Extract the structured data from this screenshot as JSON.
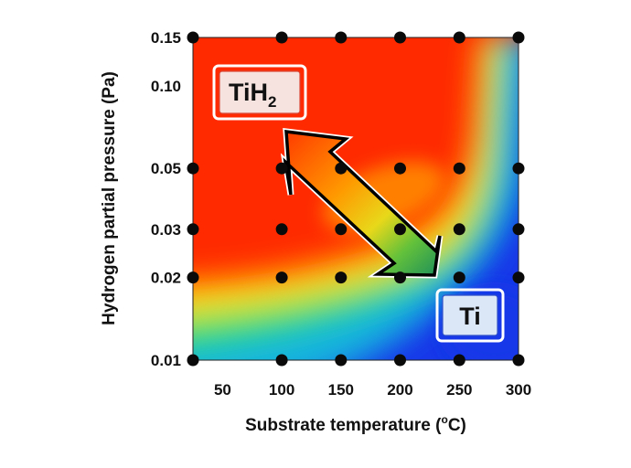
{
  "chart_data": {
    "type": "heatmap",
    "title": "",
    "xlabel": "Substrate temperature (",
    "xlabel_degree": "o",
    "xlabel_unit": "C)",
    "ylabel": "Hydrogen partial pressure (Pa)",
    "x_ticks": [
      "50",
      "100",
      "150",
      "200",
      "250",
      "300"
    ],
    "x_tick_values": [
      50,
      100,
      150,
      200,
      250,
      300
    ],
    "y_ticks": [
      "0.01",
      "0.02",
      "0.03",
      "0.05",
      "0.10",
      "0.15"
    ],
    "y_tick_values": [
      0.01,
      0.02,
      0.03,
      0.05,
      0.1,
      0.15
    ],
    "xlim": [
      25,
      300
    ],
    "ylim": [
      0.01,
      0.15
    ],
    "y_scale": "log",
    "colormap": [
      "#1538e8",
      "#13b7d8",
      "#2ee06a",
      "#dcef1a",
      "#ffa500",
      "#ff3300"
    ],
    "regions": [
      {
        "label": "TiH",
        "subscript": "2",
        "color": "#ff2a00",
        "location": "top-left"
      },
      {
        "label": "Ti",
        "color": "#1538e8",
        "location": "bottom-right"
      }
    ],
    "annotation": "double-headed arrow between TiH2 and Ti regions",
    "points": [
      {
        "x": 25,
        "y": 0.15
      },
      {
        "x": 100,
        "y": 0.15
      },
      {
        "x": 150,
        "y": 0.15
      },
      {
        "x": 200,
        "y": 0.15
      },
      {
        "x": 250,
        "y": 0.15
      },
      {
        "x": 300,
        "y": 0.15
      },
      {
        "x": 25,
        "y": 0.05
      },
      {
        "x": 100,
        "y": 0.05
      },
      {
        "x": 150,
        "y": 0.05
      },
      {
        "x": 200,
        "y": 0.05
      },
      {
        "x": 250,
        "y": 0.05
      },
      {
        "x": 300,
        "y": 0.05
      },
      {
        "x": 25,
        "y": 0.03
      },
      {
        "x": 100,
        "y": 0.03
      },
      {
        "x": 150,
        "y": 0.03
      },
      {
        "x": 200,
        "y": 0.03
      },
      {
        "x": 250,
        "y": 0.03
      },
      {
        "x": 300,
        "y": 0.03
      },
      {
        "x": 25,
        "y": 0.02
      },
      {
        "x": 100,
        "y": 0.02
      },
      {
        "x": 150,
        "y": 0.02
      },
      {
        "x": 200,
        "y": 0.02
      },
      {
        "x": 250,
        "y": 0.02
      },
      {
        "x": 300,
        "y": 0.02
      },
      {
        "x": 25,
        "y": 0.01
      },
      {
        "x": 100,
        "y": 0.01
      },
      {
        "x": 150,
        "y": 0.01
      },
      {
        "x": 200,
        "y": 0.01
      },
      {
        "x": 250,
        "y": 0.01
      },
      {
        "x": 300,
        "y": 0.01
      }
    ]
  }
}
